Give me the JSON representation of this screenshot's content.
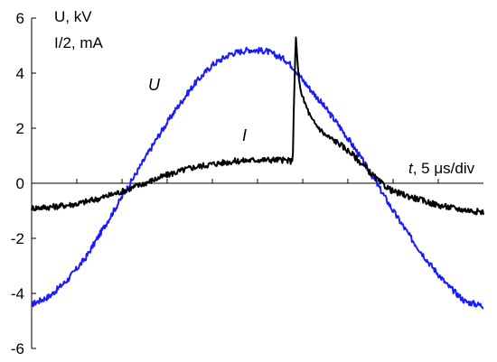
{
  "chart_data": {
    "type": "line",
    "ylabel_lines": [
      "U, kV",
      "I/2, mA"
    ],
    "xlabel_italic": "t",
    "xlabel_rest": ", 5 μs/div",
    "ylim": [
      -6,
      6
    ],
    "yticks": [
      6,
      4,
      2,
      0,
      -2,
      -4,
      -6
    ],
    "ytick_labels": [
      "6",
      "4",
      "2",
      "0",
      "-2",
      "-4",
      "-6"
    ],
    "xlim": [
      0,
      10
    ],
    "xticks": [
      1,
      2,
      3,
      4,
      5,
      6,
      7,
      8,
      9
    ],
    "series": [
      {
        "name": "U",
        "color": "#1a1aff",
        "points": [
          [
            0.0,
            -4.4
          ],
          [
            0.4,
            -4.1
          ],
          [
            0.8,
            -3.5
          ],
          [
            1.2,
            -2.7
          ],
          [
            1.6,
            -1.6
          ],
          [
            2.0,
            -0.5
          ],
          [
            2.4,
            0.6
          ],
          [
            2.8,
            1.7
          ],
          [
            3.2,
            2.7
          ],
          [
            3.6,
            3.6
          ],
          [
            4.0,
            4.3
          ],
          [
            4.4,
            4.7
          ],
          [
            4.8,
            4.85
          ],
          [
            5.2,
            4.8
          ],
          [
            5.6,
            4.5
          ],
          [
            5.8,
            4.2
          ],
          [
            6.0,
            3.75
          ],
          [
            6.4,
            2.95
          ],
          [
            6.8,
            2.1
          ],
          [
            7.2,
            1.15
          ],
          [
            7.6,
            0.1
          ],
          [
            8.0,
            -1.0
          ],
          [
            8.4,
            -2.0
          ],
          [
            8.8,
            -2.9
          ],
          [
            9.2,
            -3.7
          ],
          [
            9.6,
            -4.3
          ],
          [
            10.0,
            -4.45
          ]
        ]
      },
      {
        "name": "I",
        "color": "#000000",
        "points": [
          [
            0.0,
            -0.9
          ],
          [
            0.5,
            -0.85
          ],
          [
            1.0,
            -0.75
          ],
          [
            1.5,
            -0.55
          ],
          [
            2.0,
            -0.3
          ],
          [
            2.5,
            0.0
          ],
          [
            3.0,
            0.3
          ],
          [
            3.5,
            0.55
          ],
          [
            4.0,
            0.7
          ],
          [
            4.5,
            0.8
          ],
          [
            5.0,
            0.85
          ],
          [
            5.5,
            0.85
          ],
          [
            5.78,
            0.8
          ],
          [
            5.8,
            2.5
          ],
          [
            5.83,
            4.4
          ],
          [
            5.85,
            5.3
          ],
          [
            5.88,
            4.5
          ],
          [
            5.92,
            3.7
          ],
          [
            6.0,
            3.1
          ],
          [
            6.2,
            2.3
          ],
          [
            6.5,
            1.75
          ],
          [
            6.8,
            1.45
          ],
          [
            7.1,
            1.05
          ],
          [
            7.4,
            0.55
          ],
          [
            7.7,
            0.05
          ],
          [
            8.0,
            -0.3
          ],
          [
            8.5,
            -0.55
          ],
          [
            9.0,
            -0.8
          ],
          [
            9.5,
            -0.95
          ],
          [
            10.0,
            -1.05
          ]
        ]
      }
    ]
  }
}
